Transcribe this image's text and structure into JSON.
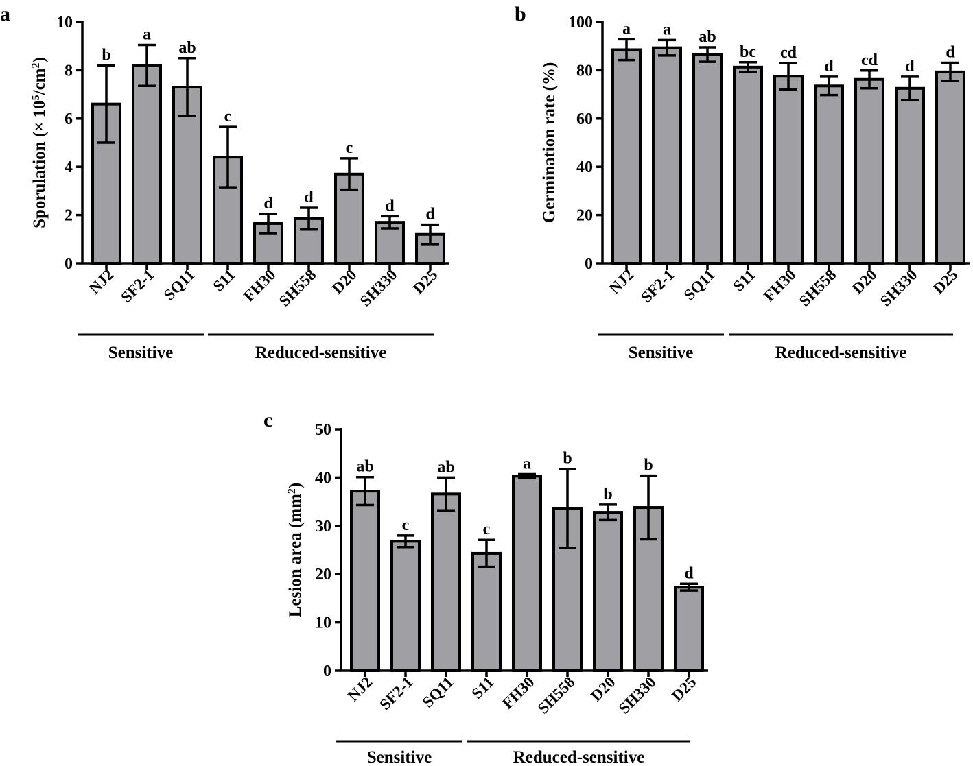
{
  "chart_data": [
    {
      "id": "a",
      "panel_label": "a",
      "type": "bar",
      "ylabel_main": "Sporulation (× 10",
      "ylabel_sup1": "5",
      "ylabel_mid": "/cm",
      "ylabel_sup2": "2",
      "ylabel_end": ")",
      "ylim": [
        0,
        10
      ],
      "yticks": [
        0,
        2,
        4,
        6,
        8,
        10
      ],
      "categories": [
        "NJ2",
        "SF2-1",
        "SQ11",
        "S11",
        "FH30",
        "SH558",
        "D20",
        "SH330",
        "D25"
      ],
      "values": [
        6.6,
        8.2,
        7.3,
        4.4,
        1.65,
        1.85,
        3.7,
        1.7,
        1.2
      ],
      "errors": [
        1.6,
        0.85,
        1.2,
        1.25,
        0.4,
        0.45,
        0.65,
        0.25,
        0.4
      ],
      "letters": [
        "b",
        "a",
        "ab",
        "c",
        "d",
        "d",
        "c",
        "d",
        "d"
      ],
      "groups": [
        {
          "label": "Sensitive",
          "start": 0,
          "end": 2
        },
        {
          "label": "Reduced-sensitive",
          "start": 3,
          "end": 8
        }
      ]
    },
    {
      "id": "b",
      "panel_label": "b",
      "type": "bar",
      "ylabel_main": "Germination rate (%)",
      "ylim": [
        0,
        100
      ],
      "yticks": [
        0,
        20,
        40,
        60,
        80,
        100
      ],
      "categories": [
        "NJ2",
        "SF2-1",
        "SQ11",
        "S11",
        "FH30",
        "SH558",
        "D20",
        "SH330",
        "D25"
      ],
      "values": [
        88.5,
        89.3,
        86.5,
        81.3,
        77.5,
        73.5,
        76.2,
        72.5,
        79.3
      ],
      "errors": [
        4.3,
        3.2,
        3.0,
        2.0,
        5.5,
        3.8,
        3.7,
        4.8,
        3.8
      ],
      "letters": [
        "a",
        "a",
        "ab",
        "bc",
        "cd",
        "d",
        "cd",
        "d",
        "d"
      ],
      "groups": [
        {
          "label": "Sensitive",
          "start": 0,
          "end": 2
        },
        {
          "label": "Reduced-sensitive",
          "start": 3,
          "end": 8
        }
      ]
    },
    {
      "id": "c",
      "panel_label": "c",
      "type": "bar",
      "ylabel_main": "Lesion area (mm",
      "ylabel_sup1": "2",
      "ylabel_end": ")",
      "ylim": [
        0,
        50
      ],
      "yticks": [
        0,
        10,
        20,
        30,
        40,
        50
      ],
      "categories": [
        "NJ2",
        "SF2-1",
        "SQ11",
        "S11",
        "FH30",
        "SH558",
        "D20",
        "SH330",
        "D25"
      ],
      "values": [
        37.2,
        26.8,
        36.6,
        24.3,
        40.3,
        33.6,
        32.8,
        33.8,
        17.3
      ],
      "errors": [
        2.9,
        1.2,
        3.4,
        2.8,
        0.4,
        8.2,
        1.6,
        6.6,
        0.7
      ],
      "letters": [
        "ab",
        "c",
        "ab",
        "c",
        "a",
        "b",
        "b",
        "b",
        "d"
      ],
      "groups": [
        {
          "label": "Sensitive",
          "start": 0,
          "end": 2
        },
        {
          "label": "Reduced-sensitive",
          "start": 3,
          "end": 8
        }
      ]
    }
  ]
}
